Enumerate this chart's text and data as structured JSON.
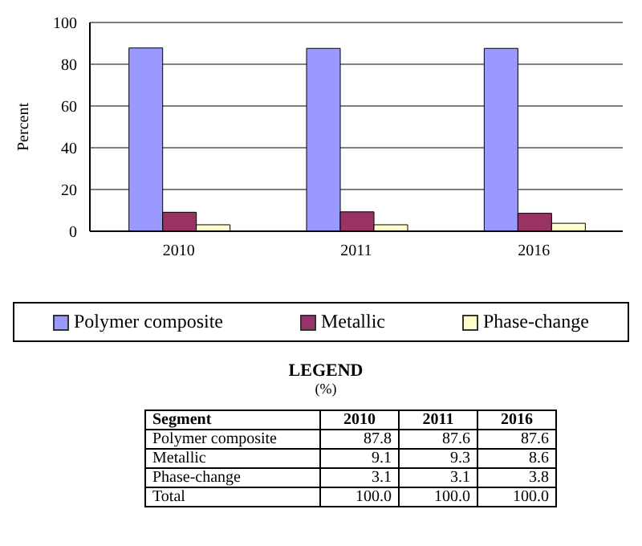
{
  "chart_data": [
    {
      "type": "bar",
      "ylabel": "Percent",
      "categories": [
        "2010",
        "2011",
        "2016"
      ],
      "series": [
        {
          "name": "Polymer composite",
          "color": "#9999ff",
          "values": [
            87.8,
            87.6,
            87.6
          ]
        },
        {
          "name": "Metallic",
          "color": "#993366",
          "values": [
            9.1,
            9.3,
            8.6
          ]
        },
        {
          "name": "Phase-change",
          "color": "#ffffcc",
          "values": [
            3.1,
            3.1,
            3.8
          ]
        }
      ],
      "ylim": [
        0,
        100
      ],
      "yticks": [
        0,
        20,
        40,
        60,
        80,
        100
      ],
      "grid": "y",
      "legend": "bottom"
    },
    {
      "type": "other",
      "title": "LEGEND",
      "subtitle": "(%)",
      "annotations": [
        "Segment"
      ],
      "categories": [
        "2010",
        "2011",
        "2016"
      ],
      "series": [
        {
          "name": "Polymer composite",
          "values": [
            87.8,
            87.6,
            87.6
          ],
          "value_labels": [
            "87.8",
            "87.6",
            "87.6"
          ]
        },
        {
          "name": "Metallic",
          "values": [
            9.1,
            9.3,
            8.6
          ],
          "value_labels": [
            "9.1",
            "9.3",
            "8.6"
          ]
        },
        {
          "name": "Phase-change",
          "values": [
            3.1,
            3.1,
            3.8
          ],
          "value_labels": [
            "3.1",
            "3.1",
            "3.8"
          ]
        },
        {
          "name": "Total",
          "values": [
            100,
            100,
            100
          ],
          "value_labels": [
            "100.0",
            "100.0",
            "100.0"
          ]
        }
      ]
    }
  ]
}
